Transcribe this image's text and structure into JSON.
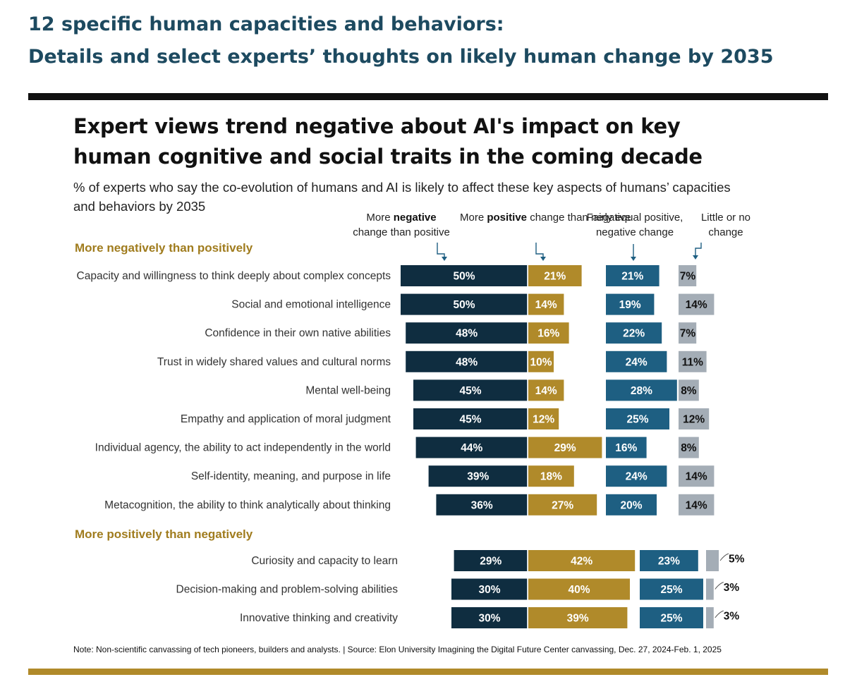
{
  "heading": {
    "line1": "12 specific human capacities and behaviors:",
    "line2": "Details and select experts’ thoughts on likely human change by 2035"
  },
  "colors": {
    "negative": "#0f2d40",
    "positive": "#b08a2a",
    "equal": "#1e5f82",
    "little": "#a4adb6",
    "heading_text": "#1d4a60",
    "section_text": "#a07c1e"
  },
  "chart_data": {
    "type": "bar",
    "title": "Expert views trend negative about AI's impact on key human cognitive and social traits in the coming decade",
    "subtitle": "% of experts who say the co-evolution of humans and AI is likely to affect these key aspects of humans’ capacities and behaviors by 2035",
    "legend": {
      "negative": [
        "More ",
        "negative",
        " change than positive"
      ],
      "positive": [
        "More ",
        "positive",
        " change than negative"
      ],
      "equal": "Fairly equal positive, negative change",
      "little": "Little or no change"
    },
    "series_names": [
      "More negative change than positive",
      "More positive change than negative",
      "Fairly equal positive, negative change",
      "Little or no change"
    ],
    "groups": [
      {
        "name": "More negatively than positively",
        "rows": [
          {
            "label": "Capacity and willingness to think deeply about complex concepts",
            "negative": 50,
            "positive": 21,
            "equal": 21,
            "little": 7
          },
          {
            "label": "Social and emotional intelligence",
            "negative": 50,
            "positive": 14,
            "equal": 19,
            "little": 14
          },
          {
            "label": "Confidence in their own native abilities",
            "negative": 48,
            "positive": 16,
            "equal": 22,
            "little": 7
          },
          {
            "label": "Trust in widely shared values and cultural norms",
            "negative": 48,
            "positive": 10,
            "equal": 24,
            "little": 11
          },
          {
            "label": "Mental well-being",
            "negative": 45,
            "positive": 14,
            "equal": 28,
            "little": 8
          },
          {
            "label": "Empathy and application of moral judgment",
            "negative": 45,
            "positive": 12,
            "equal": 25,
            "little": 12
          },
          {
            "label": "Individual agency, the ability to act independently in the world",
            "negative": 44,
            "positive": 29,
            "equal": 16,
            "little": 8
          },
          {
            "label": "Self-identity, meaning, and purpose in life",
            "negative": 39,
            "positive": 18,
            "equal": 24,
            "little": 14
          },
          {
            "label": "Metacognition, the ability to think analytically about thinking",
            "negative": 36,
            "positive": 27,
            "equal": 20,
            "little": 14
          }
        ]
      },
      {
        "name": "More positively than negatively",
        "rows": [
          {
            "label": "Curiosity and capacity to learn",
            "negative": 29,
            "positive": 42,
            "equal": 23,
            "little": 5
          },
          {
            "label": "Decision-making and problem-solving abilities",
            "negative": 30,
            "positive": 40,
            "equal": 25,
            "little": 3
          },
          {
            "label": "Innovative thinking and creativity",
            "negative": 30,
            "positive": 39,
            "equal": 25,
            "little": 3
          }
        ]
      }
    ],
    "value_suffix": "%",
    "note": "Note: Non-scientific canvassing of tech pioneers, builders and analysts. | Source: Elon University Imagining the Digital Future Center canvassing,  Dec. 27, 2024-Feb. 1, 2025"
  }
}
